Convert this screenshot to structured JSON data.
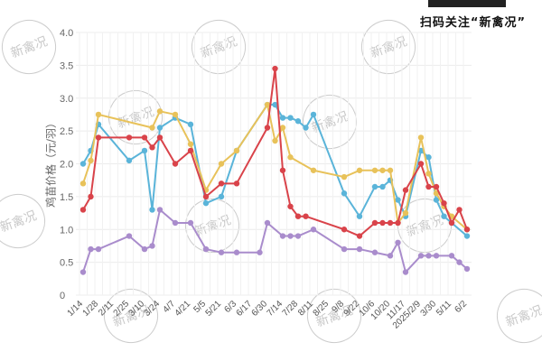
{
  "brand": {
    "qr_caption": "扫码关注“新禽况”"
  },
  "watermark": {
    "text": "新禽况"
  },
  "chart_data": {
    "type": "line",
    "title": "",
    "xlabel": "",
    "ylabel": "鸡苗价格（元/羽）",
    "ylim": [
      0,
      4.0
    ],
    "yticks": [
      "0",
      "0.5",
      "1.0",
      "1.5",
      "2.0",
      "2.5",
      "3.0",
      "3.5",
      "4.0"
    ],
    "grid": true,
    "legend": "none",
    "x_tick_labels": [
      "1/14",
      "1/28",
      "2/11",
      "2/25",
      "3/10",
      "3/24",
      "4/7",
      "4/21",
      "5/5",
      "5/21",
      "6/3",
      "6/17",
      "6/30",
      "7/14",
      "7/28",
      "8/11",
      "8/25",
      "9/8",
      "9/22",
      "10/6",
      "10/20",
      "11/17",
      "2025/2/9",
      "3/30",
      "5/11",
      "6/2"
    ],
    "series": [
      {
        "name": "blue",
        "color": "#5ab4d9",
        "points": [
          [
            0,
            2.0
          ],
          [
            0.5,
            2.2
          ],
          [
            1,
            2.6
          ],
          [
            3,
            2.05
          ],
          [
            4,
            2.2
          ],
          [
            4.5,
            1.3
          ],
          [
            5,
            2.55
          ],
          [
            6,
            2.7
          ],
          [
            7,
            2.6
          ],
          [
            8,
            1.4
          ],
          [
            9,
            1.5
          ],
          [
            10,
            2.2
          ],
          [
            12,
            2.9
          ],
          [
            12.5,
            2.9
          ],
          [
            13,
            2.7
          ],
          [
            13.5,
            2.7
          ],
          [
            14,
            2.65
          ],
          [
            14.5,
            2.55
          ],
          [
            15,
            2.75
          ],
          [
            17,
            1.55
          ],
          [
            18,
            1.2
          ],
          [
            19,
            1.65
          ],
          [
            19.5,
            1.65
          ],
          [
            20,
            1.75
          ],
          [
            20.5,
            1.45
          ],
          [
            21,
            1.2
          ],
          [
            22,
            2.2
          ],
          [
            22.5,
            2.1
          ],
          [
            23,
            1.45
          ],
          [
            23.5,
            1.2
          ],
          [
            24,
            1.1
          ],
          [
            25,
            0.9
          ]
        ]
      },
      {
        "name": "yellow",
        "color": "#e8c25a",
        "points": [
          [
            0,
            1.7
          ],
          [
            0.5,
            2.05
          ],
          [
            1,
            2.75
          ],
          [
            4.5,
            2.55
          ],
          [
            5,
            2.8
          ],
          [
            6,
            2.75
          ],
          [
            7,
            2.3
          ],
          [
            8,
            1.6
          ],
          [
            9,
            2.0
          ],
          [
            10,
            2.2
          ],
          [
            12,
            2.9
          ],
          [
            12.5,
            2.35
          ],
          [
            13,
            2.55
          ],
          [
            13.5,
            2.1
          ],
          [
            15,
            1.9
          ],
          [
            17,
            1.8
          ],
          [
            18,
            1.9
          ],
          [
            19,
            1.9
          ],
          [
            19.5,
            1.9
          ],
          [
            20,
            1.9
          ],
          [
            20.5,
            1.1
          ],
          [
            21,
            1.25
          ],
          [
            22,
            2.4
          ],
          [
            22.5,
            1.85
          ],
          [
            23,
            1.55
          ],
          [
            23.5,
            1.35
          ],
          [
            24,
            1.2
          ],
          [
            25,
            1.0
          ]
        ]
      },
      {
        "name": "red",
        "color": "#d9434a",
        "points": [
          [
            0,
            1.3
          ],
          [
            0.5,
            1.5
          ],
          [
            1,
            2.4
          ],
          [
            3,
            2.4
          ],
          [
            4,
            2.4
          ],
          [
            4.5,
            2.25
          ],
          [
            5,
            2.4
          ],
          [
            6,
            2.0
          ],
          [
            7,
            2.2
          ],
          [
            8,
            1.5
          ],
          [
            9,
            1.7
          ],
          [
            10,
            1.7
          ],
          [
            12,
            2.55
          ],
          [
            12.5,
            3.45
          ],
          [
            13,
            1.9
          ],
          [
            13.5,
            1.35
          ],
          [
            14,
            1.2
          ],
          [
            14.5,
            1.2
          ],
          [
            17,
            1.0
          ],
          [
            18,
            0.9
          ],
          [
            19,
            1.1
          ],
          [
            19.5,
            1.1
          ],
          [
            20,
            1.1
          ],
          [
            20.5,
            1.1
          ],
          [
            21,
            1.6
          ],
          [
            22,
            2.0
          ],
          [
            22.5,
            1.65
          ],
          [
            23,
            1.65
          ],
          [
            23.5,
            1.4
          ],
          [
            24,
            1.1
          ],
          [
            24.5,
            1.3
          ],
          [
            25,
            1.0
          ]
        ]
      },
      {
        "name": "purple",
        "color": "#a98ccc",
        "points": [
          [
            0,
            0.35
          ],
          [
            0.5,
            0.7
          ],
          [
            1,
            0.7
          ],
          [
            3,
            0.9
          ],
          [
            4,
            0.7
          ],
          [
            4.5,
            0.75
          ],
          [
            5,
            1.3
          ],
          [
            6,
            1.1
          ],
          [
            7,
            1.1
          ],
          [
            8,
            0.7
          ],
          [
            9,
            0.65
          ],
          [
            10,
            0.65
          ],
          [
            11.5,
            0.65
          ],
          [
            12,
            1.1
          ],
          [
            13,
            0.9
          ],
          [
            13.5,
            0.9
          ],
          [
            14,
            0.9
          ],
          [
            15,
            1.0
          ],
          [
            17,
            0.7
          ],
          [
            18,
            0.7
          ],
          [
            19,
            0.65
          ],
          [
            20,
            0.6
          ],
          [
            20.5,
            0.8
          ],
          [
            21,
            0.35
          ],
          [
            22,
            0.6
          ],
          [
            22.5,
            0.6
          ],
          [
            23,
            0.6
          ],
          [
            24,
            0.6
          ],
          [
            24.5,
            0.5
          ],
          [
            25,
            0.4
          ]
        ]
      }
    ]
  }
}
